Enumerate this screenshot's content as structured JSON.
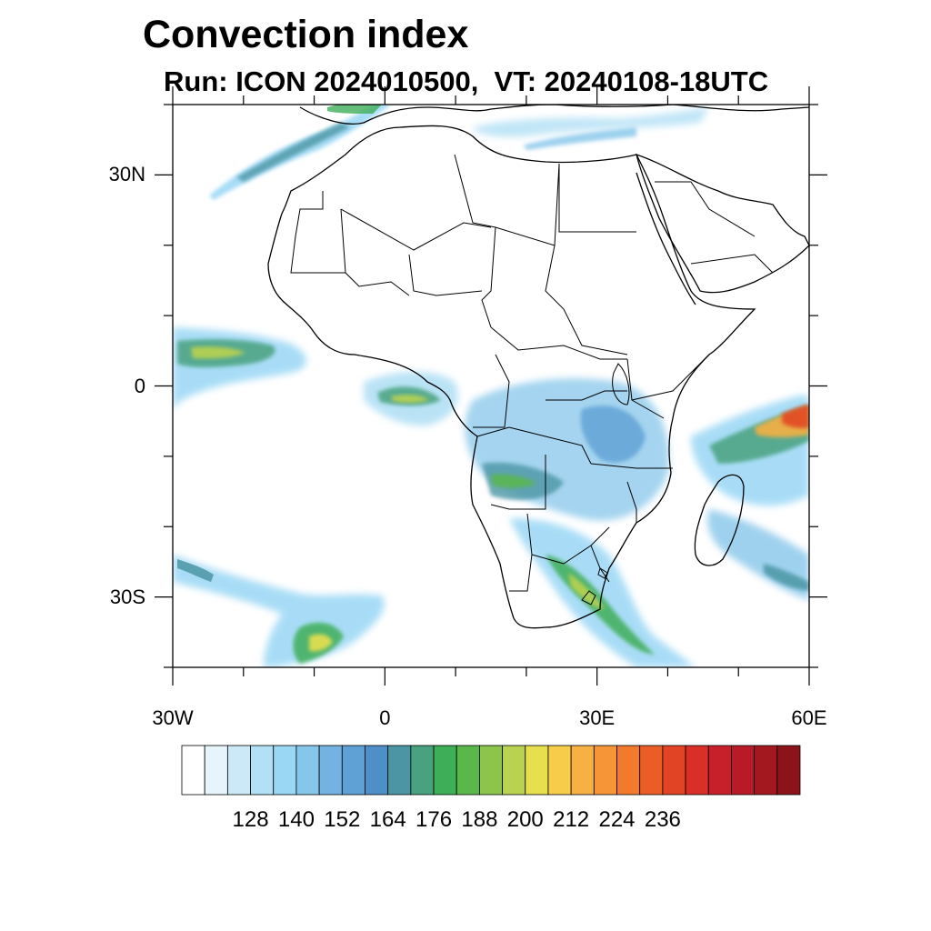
{
  "title": "Convection index",
  "subtitle": "Run: ICON 2024010500,  VT: 20240108-18UTC",
  "map": {
    "region": "Africa",
    "lon_range": [
      -30,
      60
    ],
    "lat_range": [
      -40,
      40
    ],
    "lat_labels": [
      "30N",
      "0",
      "30S"
    ],
    "lat_label_values": [
      30,
      0,
      -30
    ],
    "lon_labels": [
      "30W",
      "0",
      "30E",
      "60E"
    ],
    "lon_label_values": [
      -30,
      0,
      30,
      60
    ]
  },
  "colorbar": {
    "labels": [
      "128",
      "140",
      "152",
      "164",
      "176",
      "188",
      "200",
      "212",
      "224",
      "236"
    ],
    "colors": [
      "#ffffff",
      "#e6f4fb",
      "#cbe9f7",
      "#b2e0f5",
      "#9ad7f5",
      "#86c6ea",
      "#74b3e1",
      "#5fa0d5",
      "#4e8fc8",
      "#4b96a4",
      "#49a27f",
      "#3fae58",
      "#5ab84b",
      "#8cc44c",
      "#b9d24f",
      "#e6e04f",
      "#f7cc4a",
      "#f6b043",
      "#f59537",
      "#f17a2d",
      "#ea5d27",
      "#e14324",
      "#d92f27",
      "#c8202a",
      "#b81a27",
      "#a3171f",
      "#8a141a"
    ]
  },
  "icons": {
    "coastline": "map-coastline",
    "borders": "country-borders"
  }
}
